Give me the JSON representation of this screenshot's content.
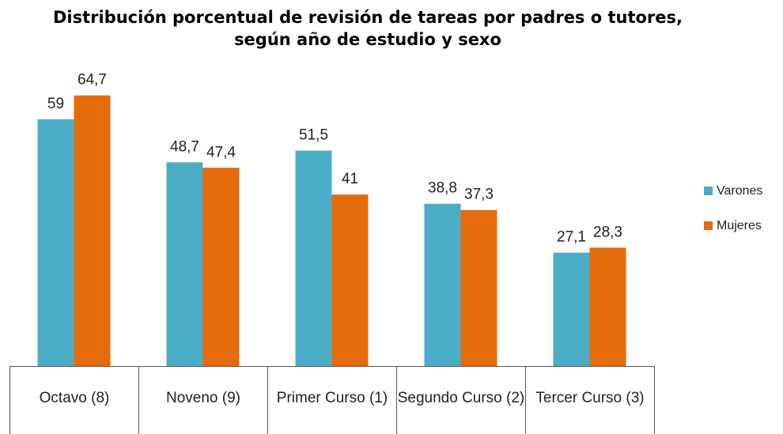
{
  "chart_data": {
    "type": "bar",
    "title": "Distribución porcentual de revisión de tareas por padres o tutores, según año de estudio y sexo",
    "categories": [
      "Octavo (8)",
      "Noveno (9)",
      "Primer  Curso (1)",
      "Segundo Curso (2)",
      "Tercer Curso (3)"
    ],
    "series": [
      {
        "name": "Varones",
        "color": "#4bacc6",
        "values": [
          59,
          48.7,
          51.5,
          38.8,
          27.1
        ],
        "value_labels": [
          "59",
          "48,7",
          "51,5",
          "38,8",
          "27,1"
        ]
      },
      {
        "name": "Mujeres",
        "color": "#e46c0a",
        "values": [
          64.7,
          47.4,
          41,
          37.3,
          28.3
        ],
        "value_labels": [
          "64,7",
          "47,4",
          "41",
          "37,3",
          "28,3"
        ]
      }
    ],
    "legend": "right"
  }
}
